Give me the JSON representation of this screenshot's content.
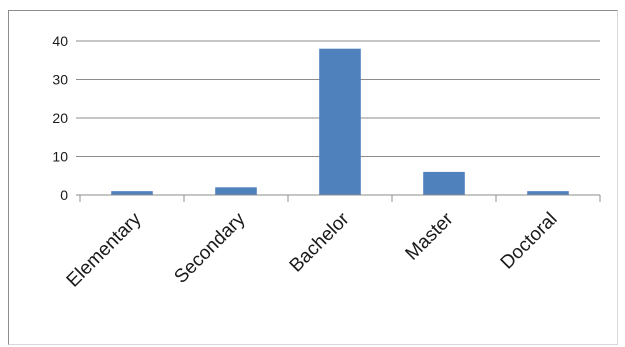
{
  "chart_data": {
    "type": "bar",
    "title": "",
    "xlabel": "",
    "ylabel": "",
    "categories": [
      "Elementary",
      "Secondary",
      "Bachelor",
      "Master",
      "Doctoral"
    ],
    "values": [
      1,
      2,
      38,
      6,
      1
    ],
    "ylim": [
      0,
      40
    ],
    "yticks": [
      0,
      10,
      20,
      30,
      40
    ],
    "grid": true,
    "legend": "none",
    "bar_color": "#4f81bd",
    "gridline_color": "#8c8c8c"
  }
}
